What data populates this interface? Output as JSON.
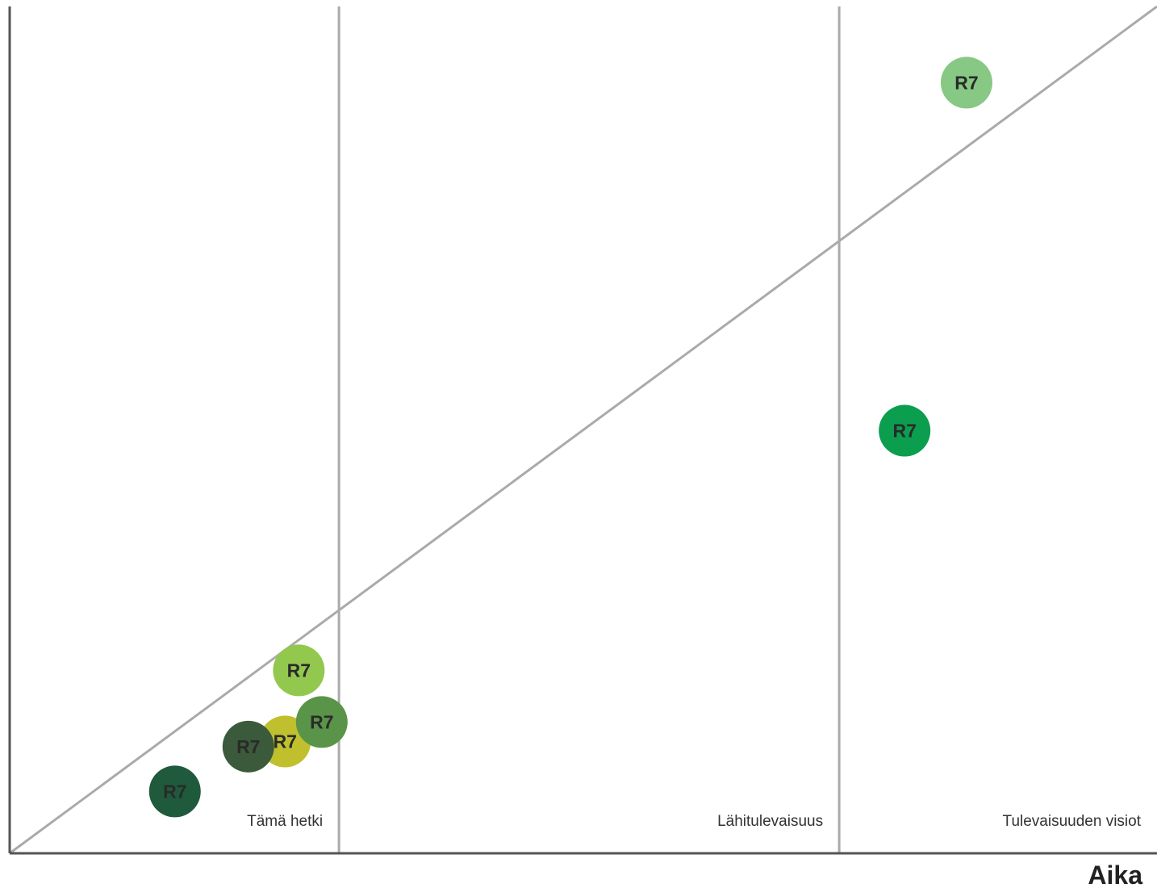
{
  "chart_data": {
    "type": "scatter",
    "title": "",
    "xlabel": "Aika",
    "ylabel": "",
    "xlim": [
      0,
      100
    ],
    "ylim": [
      0,
      100
    ],
    "grid": false,
    "phases": [
      {
        "label": "Tämä hetki",
        "end": 28.7
      },
      {
        "label": "Lähitulevaisuus",
        "end": 72.3
      },
      {
        "label": "Tulevaisuuden visiot",
        "end": 100
      }
    ],
    "trend_line": {
      "from": [
        0,
        0
      ],
      "to": [
        100,
        100
      ]
    },
    "points": [
      {
        "label": "R7",
        "x": 14.4,
        "y": 7.3,
        "color": "#1e5a3b"
      },
      {
        "label": "R7",
        "x": 24.0,
        "y": 13.2,
        "color": "#c0c02e"
      },
      {
        "label": "R7",
        "x": 20.8,
        "y": 12.6,
        "color": "#3b5a3b"
      },
      {
        "label": "R7",
        "x": 27.2,
        "y": 15.5,
        "color": "#5a9448"
      },
      {
        "label": "R7",
        "x": 25.2,
        "y": 21.6,
        "color": "#92c84e"
      },
      {
        "label": "R7",
        "x": 78.0,
        "y": 49.9,
        "color": "#0a9e4e"
      },
      {
        "label": "R7",
        "x": 83.4,
        "y": 91.0,
        "color": "#86c884"
      }
    ]
  }
}
